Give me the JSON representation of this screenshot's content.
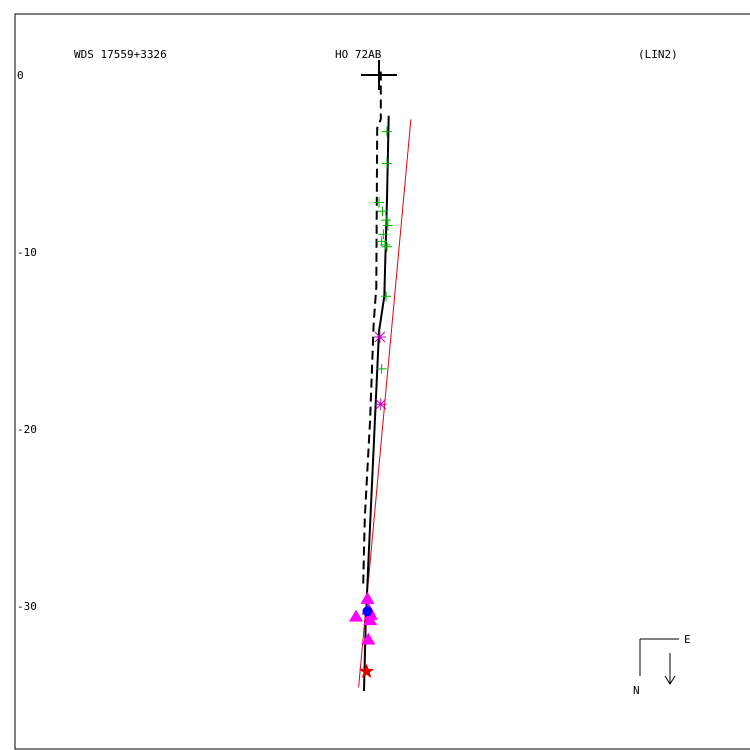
{
  "header": {
    "wds": "WDS 17559+3326",
    "discoverer": "HO   72AB",
    "fit_code": "(LIN2)"
  },
  "compass": {
    "east": "E",
    "north": "N"
  },
  "colors": {
    "frame": "#000000",
    "linear_fit": "#e8000b",
    "micrometer": "#00b000",
    "speckle": "#c000c0",
    "triangle": "#ff00ff",
    "circle": "#0000ff",
    "star": "#e00000"
  },
  "chart_data": {
    "type": "scatter",
    "title": "",
    "xlabel": "",
    "ylabel": "",
    "ylim": [
      -36,
      3
    ],
    "yticks": [
      0,
      -10,
      -20,
      -30
    ],
    "ytick_labels": [
      "0",
      "-10",
      "-20",
      "-30"
    ],
    "xlim": [
      -20,
      21.2
    ],
    "grid": false,
    "primary": {
      "x": 0,
      "y": 0,
      "marker": "plus"
    },
    "series": [
      {
        "marker": "plus",
        "points": [
          {
            "x": 0.45,
            "y": -3.2
          },
          {
            "x": 0.45,
            "y": -5.0
          },
          {
            "x": 0.0,
            "y": -7.2
          },
          {
            "x": 0.2,
            "y": -7.7
          },
          {
            "x": 0.4,
            "y": -8.2
          },
          {
            "x": 0.5,
            "y": -8.5
          },
          {
            "x": 0.25,
            "y": -9.0
          },
          {
            "x": 0.15,
            "y": -9.4
          },
          {
            "x": 0.35,
            "y": -9.6
          },
          {
            "x": 0.45,
            "y": -9.7
          },
          {
            "x": 0.4,
            "y": -12.5
          },
          {
            "x": 0.15,
            "y": -16.6
          }
        ]
      },
      {
        "marker": "asterisk",
        "points": [
          {
            "x": 0.05,
            "y": -14.8
          },
          {
            "x": 0.1,
            "y": -18.6
          }
        ]
      },
      {
        "marker": "triangle",
        "points": [
          {
            "x": -0.65,
            "y": -29.6
          },
          {
            "x": -0.6,
            "y": -30.2
          },
          {
            "x": -0.45,
            "y": -30.5
          },
          {
            "x": -0.5,
            "y": -30.8
          },
          {
            "x": -0.6,
            "y": -31.9
          },
          {
            "x": -1.3,
            "y": -30.6
          }
        ]
      },
      {
        "marker": "circle",
        "points": [
          {
            "x": -0.65,
            "y": -30.3
          }
        ]
      },
      {
        "marker": "star",
        "points": [
          {
            "x": -0.7,
            "y": -33.7
          }
        ]
      }
    ],
    "orbit_solid": [
      {
        "x": 0.55,
        "y": -2.3
      },
      {
        "x": 0.45,
        "y": -7.0
      },
      {
        "x": 0.3,
        "y": -12.5
      },
      {
        "x": 0.0,
        "y": -14.5
      },
      {
        "x": -0.3,
        "y": -21.0
      },
      {
        "x": -0.6,
        "y": -27.5
      },
      {
        "x": -0.75,
        "y": -31.0
      },
      {
        "x": -0.85,
        "y": -34.8
      }
    ],
    "orbit_dashed": [
      {
        "x": 0.1,
        "y": 0.2
      },
      {
        "x": 0.1,
        "y": -2.5
      },
      {
        "x": -0.1,
        "y": -3.0
      },
      {
        "x": -0.15,
        "y": -12.0
      },
      {
        "x": -0.3,
        "y": -14.0
      },
      {
        "x": -0.5,
        "y": -19.5
      },
      {
        "x": -0.8,
        "y": -25.0
      },
      {
        "x": -0.9,
        "y": -29.0
      }
    ],
    "linear_fit": [
      {
        "x": 1.8,
        "y": -2.5
      },
      {
        "x": -1.15,
        "y": -34.6
      }
    ]
  }
}
